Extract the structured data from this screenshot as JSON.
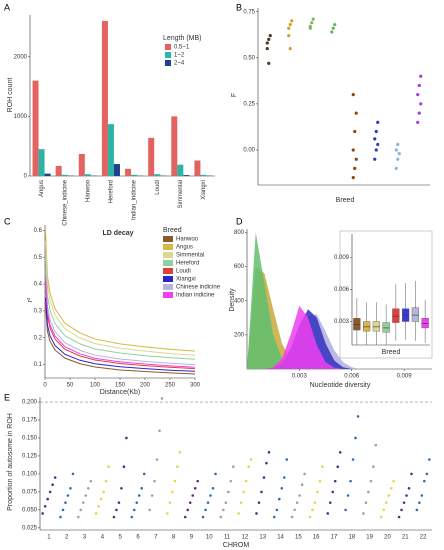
{
  "chart_data": [
    {
      "type": "grouped_bar",
      "label": "A",
      "ylabel": "ROH count",
      "legend_title": "Length (MB)",
      "categories": [
        "Angus",
        "Chinese_indicine",
        "Hanwoo",
        "Hereford",
        "Indian_indicine",
        "Loudi",
        "Simmental",
        "Xiangxi"
      ],
      "series": [
        {
          "name": "0.5~1",
          "color": "#e36360",
          "values": [
            1600,
            170,
            370,
            2600,
            120,
            640,
            1000,
            260
          ]
        },
        {
          "name": "1~2",
          "color": "#2cb4a6",
          "values": [
            450,
            20,
            30,
            870,
            20,
            30,
            190,
            20
          ]
        },
        {
          "name": "2~4",
          "color": "#1f3f8f",
          "values": [
            40,
            5,
            5,
            200,
            5,
            5,
            15,
            5
          ]
        }
      ],
      "ylim": [
        0,
        2700
      ],
      "yticks": [
        0,
        1000,
        2000
      ]
    },
    {
      "type": "dot",
      "label": "B",
      "ylabel": "F",
      "xlabel": "Breed",
      "series": [
        {
          "color": "#4a3a1e",
          "values": [
            0.58,
            0.6,
            0.62,
            0.55,
            0.47
          ]
        },
        {
          "color": "#d4a020",
          "values": [
            0.66,
            0.68,
            0.7,
            0.62,
            0.55
          ]
        },
        {
          "color": "#7cb85a",
          "values": [
            0.67,
            0.69,
            0.71,
            0.66
          ]
        },
        {
          "color": "#5cb85c",
          "values": [
            0.64,
            0.66,
            0.68
          ]
        },
        {
          "color": "#8b4513",
          "values": [
            -0.15,
            -0.1,
            -0.05,
            0.0,
            0.1,
            0.2,
            0.3
          ]
        },
        {
          "color": "#2040c0",
          "values": [
            -0.05,
            0.0,
            0.03,
            0.06,
            0.1,
            0.15
          ]
        },
        {
          "color": "#90b0e0",
          "values": [
            -0.1,
            -0.05,
            -0.02,
            0.0,
            0.03
          ]
        },
        {
          "color": "#a040e0",
          "values": [
            0.15,
            0.2,
            0.25,
            0.3,
            0.35,
            0.4
          ]
        }
      ],
      "ylim": [
        -0.19,
        0.77
      ],
      "yticks": [
        {
          "value": 0,
          "label": "0.00"
        },
        0.25,
        {
          "value": 0.5,
          "label": "0.50"
        },
        0.75
      ]
    },
    {
      "type": "line",
      "label": "C",
      "title": "LD decay",
      "xlabel": "Distance(Kb)",
      "ylabel": "r²",
      "legend_title": "Breed",
      "x": [
        1,
        5,
        10,
        20,
        40,
        70,
        100,
        150,
        200,
        250,
        300
      ],
      "series": [
        {
          "name": "Hanwoo",
          "color": "#8b5a2b",
          "values": [
            0.32,
            0.223,
            0.187,
            0.154,
            0.124,
            0.103,
            0.091,
            0.08,
            0.074,
            0.069,
            0.065
          ]
        },
        {
          "name": "Angus",
          "color": "#d9b648",
          "values": [
            0.6,
            0.429,
            0.366,
            0.308,
            0.254,
            0.218,
            0.195,
            0.177,
            0.166,
            0.157,
            0.15
          ]
        },
        {
          "name": "Simmental",
          "color": "#dcd890",
          "values": [
            0.56,
            0.399,
            0.339,
            0.284,
            0.233,
            0.199,
            0.178,
            0.161,
            0.15,
            0.141,
            0.135
          ]
        },
        {
          "name": "Hereford",
          "color": "#8fd19e",
          "values": [
            0.5,
            0.356,
            0.302,
            0.253,
            0.207,
            0.177,
            0.158,
            0.143,
            0.133,
            0.126,
            0.12
          ]
        },
        {
          "name": "Loudi",
          "color": "#e0403a",
          "values": [
            0.4,
            0.28,
            0.236,
            0.195,
            0.157,
            0.132,
            0.117,
            0.104,
            0.096,
            0.09,
            0.085
          ]
        },
        {
          "name": "Xiangxi",
          "color": "#2828c8",
          "values": [
            0.35,
            0.246,
            0.207,
            0.171,
            0.138,
            0.116,
            0.103,
            0.092,
            0.085,
            0.079,
            0.075
          ]
        },
        {
          "name": "Chinese indicine",
          "color": "#b7b5dd",
          "values": [
            0.45,
            0.317,
            0.268,
            0.223,
            0.181,
            0.153,
            0.135,
            0.121,
            0.112,
            0.105,
            0.1
          ]
        },
        {
          "name": "Indian indicine",
          "color": "#f03ef0",
          "values": [
            0.42,
            0.295,
            0.248,
            0.206,
            0.166,
            0.14,
            0.123,
            0.11,
            0.102,
            0.095,
            0.09
          ]
        }
      ],
      "xlim": [
        0,
        300
      ],
      "xticks": [
        0,
        50,
        100,
        150,
        200,
        250,
        300
      ],
      "ylim": [
        0.05,
        0.62
      ],
      "yticks": [
        0.1,
        0.2,
        0.3,
        0.4,
        0.5,
        0.6
      ]
    },
    {
      "type": "density",
      "label": "D",
      "xlabel": "Nucleotide diversity",
      "ylabel": "Density",
      "x": [
        0,
        0.0005,
        0.001,
        0.0015,
        0.002,
        0.0025,
        0.003,
        0.0035,
        0.004,
        0.0045,
        0.005,
        0.0055,
        0.006,
        0.0065
      ],
      "series": [
        {
          "color": "#c9a93a",
          "values": [
            0,
            600,
            560,
            350,
            150,
            50,
            10,
            2,
            0,
            0,
            0,
            0,
            0,
            0
          ]
        },
        {
          "color": "#5fbf6f",
          "values": [
            0,
            800,
            500,
            200,
            60,
            15,
            3,
            0,
            0,
            0,
            0,
            0,
            0,
            0
          ]
        },
        {
          "color": "#b0aee0",
          "values": [
            0,
            0,
            0,
            5,
            20,
            80,
            200,
            310,
            320,
            220,
            110,
            40,
            10,
            0
          ]
        },
        {
          "color": "#3030c0",
          "values": [
            0,
            0,
            0,
            5,
            30,
            120,
            260,
            350,
            300,
            150,
            50,
            10,
            0,
            0
          ]
        },
        {
          "color": "#f03ef0",
          "values": [
            0,
            0,
            0,
            10,
            60,
            200,
            370,
            300,
            140,
            40,
            8,
            0,
            0,
            0
          ]
        }
      ],
      "xlim": [
        0,
        0.0106
      ],
      "xticks": [
        0.003,
        0.006,
        0.009
      ],
      "ylim": [
        0,
        820
      ],
      "yticks": [
        200,
        400,
        600,
        800
      ]
    },
    {
      "type": "box",
      "xlabel": "Breed",
      "colors": [
        "#8b5a2b",
        "#d9b648",
        "#dcd890",
        "#8fd19e",
        "#e0403a",
        "#3a3ad8",
        "#b7b5dd",
        "#f03ef0"
      ],
      "low": [
        0.0008,
        0.0008,
        0.0008,
        0.0008,
        0.0012,
        0.0013,
        0.0012,
        0.001
      ],
      "q1": [
        0.0022,
        0.0021,
        0.0021,
        0.002,
        0.0029,
        0.003,
        0.003,
        0.0024
      ],
      "median": [
        0.0027,
        0.0025,
        0.0025,
        0.0024,
        0.0035,
        0.0036,
        0.0036,
        0.0028
      ],
      "q3": [
        0.0033,
        0.003,
        0.003,
        0.0029,
        0.0042,
        0.0042,
        0.0043,
        0.0033
      ],
      "high": [
        0.0052,
        0.0048,
        0.0048,
        0.0046,
        0.0065,
        0.0066,
        0.0068,
        0.005
      ],
      "ylim": [
        0.0008,
        0.0112
      ],
      "yticks": [
        0.003,
        0.006,
        0.009
      ]
    },
    {
      "type": "manhattan",
      "label": "E",
      "xlabel": "CHROM",
      "ylabel": "Proportion of autosome in ROH",
      "colors": [
        "#5b2a86",
        "#2f6eb5",
        "#a0a0a0",
        "#e8d44a"
      ],
      "hline": 0.2,
      "categories": [
        "1",
        "2",
        "3",
        "4",
        "5",
        "6",
        "7",
        "8",
        "9",
        "10",
        "11",
        "12",
        "13",
        "14",
        "15",
        "16",
        "17",
        "18",
        "19",
        "20",
        "21",
        "22"
      ],
      "values": [
        [
          0.045,
          0.055,
          0.065,
          0.075,
          0.085,
          0.095
        ],
        [
          0.04,
          0.05,
          0.06,
          0.07,
          0.08,
          0.1
        ],
        [
          0.04,
          0.05,
          0.06,
          0.07,
          0.08,
          0.09
        ],
        [
          0.045,
          0.055,
          0.065,
          0.075,
          0.09,
          0.11
        ],
        [
          0.04,
          0.05,
          0.06,
          0.08,
          0.11,
          0.15
        ],
        [
          0.04,
          0.05,
          0.06,
          0.07,
          0.08,
          0.1
        ],
        [
          0.05,
          0.07,
          0.09,
          0.12,
          0.16,
          0.205
        ],
        [
          0.045,
          0.06,
          0.075,
          0.09,
          0.11,
          0.13
        ],
        [
          0.04,
          0.05,
          0.06,
          0.07,
          0.08,
          0.09
        ],
        [
          0.04,
          0.05,
          0.06,
          0.07,
          0.08,
          0.1
        ],
        [
          0.04,
          0.05,
          0.06,
          0.075,
          0.09,
          0.11
        ],
        [
          0.045,
          0.06,
          0.075,
          0.09,
          0.11,
          0.12
        ],
        [
          0.045,
          0.06,
          0.075,
          0.095,
          0.115,
          0.13
        ],
        [
          0.04,
          0.05,
          0.065,
          0.08,
          0.095,
          0.12
        ],
        [
          0.04,
          0.05,
          0.06,
          0.07,
          0.085,
          0.1
        ],
        [
          0.04,
          0.05,
          0.06,
          0.075,
          0.09,
          0.11
        ],
        [
          0.045,
          0.06,
          0.075,
          0.09,
          0.11,
          0.13
        ],
        [
          0.05,
          0.07,
          0.09,
          0.12,
          0.15,
          0.18
        ],
        [
          0.045,
          0.06,
          0.075,
          0.09,
          0.11,
          0.14
        ],
        [
          0.04,
          0.05,
          0.06,
          0.07,
          0.08,
          0.09
        ],
        [
          0.04,
          0.05,
          0.06,
          0.07,
          0.08,
          0.1
        ],
        [
          0.05,
          0.06,
          0.07,
          0.09,
          0.1,
          0.12
        ]
      ],
      "ylim": [
        0.022,
        0.207
      ],
      "yticks": [
        0.025,
        {
          "value": 0.05,
          "label": "0.050"
        },
        0.075,
        {
          "value": 0.1,
          "label": "0.100"
        },
        0.125,
        {
          "value": 0.15,
          "label": "0.150"
        },
        0.175,
        {
          "value": 0.2,
          "label": "0.200"
        }
      ]
    }
  ]
}
